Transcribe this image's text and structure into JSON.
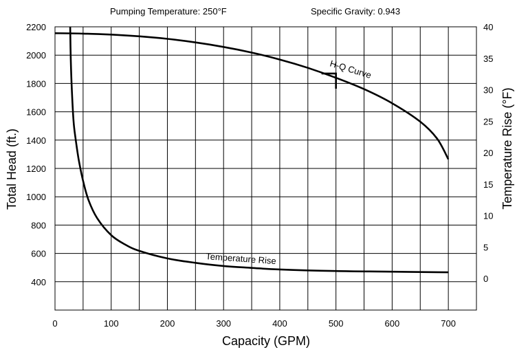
{
  "header": {
    "pumping_temperature": "Pumping Temperature: 250°F",
    "specific_gravity": "Specific Gravity: 0.943"
  },
  "chart_data": {
    "type": "line",
    "title": "",
    "xlabel": "Capacity (GPM)",
    "ylabel": "Total Head (ft.)",
    "y2label": "Temperature Rise (°F)",
    "xlim": [
      0,
      750
    ],
    "ylim": [
      200,
      2200
    ],
    "y2lim": [
      -5,
      40
    ],
    "x_ticks": [
      0,
      100,
      200,
      300,
      400,
      500,
      600,
      700
    ],
    "x_tick_labels": [
      "0",
      "100",
      "200",
      "300",
      "400",
      "500",
      "600",
      "700"
    ],
    "y_ticks": [
      400,
      600,
      800,
      1000,
      1200,
      1400,
      1600,
      1800,
      2000,
      2200
    ],
    "y_tick_labels": [
      "400",
      "600",
      "800",
      "1000",
      "1200",
      "1400",
      "1600",
      "1800",
      "2000",
      "2200"
    ],
    "y2_ticks": [
      0,
      5,
      10,
      15,
      20,
      25,
      30,
      35,
      40
    ],
    "y2_tick_labels": [
      "0",
      "5",
      "10",
      "15",
      "20",
      "25",
      "30",
      "35",
      "40"
    ],
    "grid": true,
    "series": [
      {
        "name": "H-Q Curve",
        "axis": "left",
        "x": [
          0,
          50,
          100,
          150,
          200,
          250,
          300,
          350,
          400,
          450,
          500,
          550,
          600,
          650,
          680,
          700
        ],
        "y": [
          2155,
          2152,
          2145,
          2133,
          2115,
          2090,
          2058,
          2018,
          1969,
          1910,
          1840,
          1760,
          1660,
          1530,
          1410,
          1265
        ]
      },
      {
        "name": "Temperature Rise",
        "axis": "right",
        "x": [
          27,
          28,
          30,
          33,
          37,
          42,
          50,
          60,
          75,
          100,
          125,
          150,
          200,
          250,
          300,
          350,
          400,
          500,
          600,
          700
        ],
        "y": [
          40,
          35,
          30,
          25,
          22,
          19,
          15.5,
          12.4,
          9.6,
          6.9,
          5.4,
          4.4,
          3.2,
          2.5,
          2.0,
          1.7,
          1.45,
          1.2,
          1.1,
          1.0
        ]
      }
    ],
    "marker": {
      "x": 500,
      "y": 1870
    }
  }
}
